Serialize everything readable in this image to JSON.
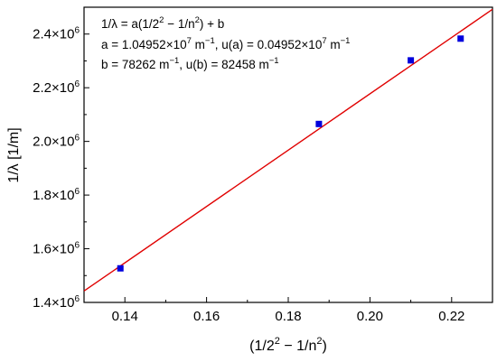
{
  "chart_data": {
    "type": "scatter",
    "xlabel": {
      "main": "(1/2",
      "sup1": "2",
      "mid": " − 1/n",
      "sup2": "2",
      "end": ")"
    },
    "ylabel": "1/λ [1/m]",
    "xlim": [
      0.13,
      0.23
    ],
    "ylim": [
      1400000,
      2500000
    ],
    "x_ticks": [
      0.14,
      0.16,
      0.18,
      0.2,
      0.22
    ],
    "x_tick_labels": [
      "0.14",
      "0.16",
      "0.18",
      "0.20",
      "0.22"
    ],
    "y_ticks": [
      1400000,
      1600000,
      1800000,
      2000000,
      2200000,
      2400000
    ],
    "y_tick_labels": [
      {
        "base": "1.4×10",
        "exp": "6"
      },
      {
        "base": "1.6×10",
        "exp": "6"
      },
      {
        "base": "1.8×10",
        "exp": "6"
      },
      {
        "base": "2.0×10",
        "exp": "6"
      },
      {
        "base": "2.2×10",
        "exp": "6"
      },
      {
        "base": "2.4×10",
        "exp": "6"
      }
    ],
    "grid": false,
    "points": [
      {
        "x": 0.1389,
        "y": 1527000
      },
      {
        "x": 0.1875,
        "y": 2065000
      },
      {
        "x": 0.21,
        "y": 2302000
      },
      {
        "x": 0.2222,
        "y": 2383000
      }
    ],
    "point_color": "#0000dd",
    "fit": {
      "slope": 10495200,
      "intercept": 78262
    },
    "fit_color": "#e00000",
    "annotation": {
      "line1": {
        "a": "1/λ = a(1/2",
        "b": "2",
        "c": " − 1/n",
        "d": "2",
        "e": ") + b"
      },
      "line2": {
        "a": "a = 1.04952×10",
        "b": "7",
        "c": " m",
        "d": "−1",
        "e": ", u(a) = 0.04952×10",
        "f": "7",
        "g": " m",
        "h": "−1"
      },
      "line3": {
        "a": "b = 78262 m",
        "b": "−1",
        "c": ", u(b) = 82458 m",
        "d": "−1"
      }
    }
  }
}
